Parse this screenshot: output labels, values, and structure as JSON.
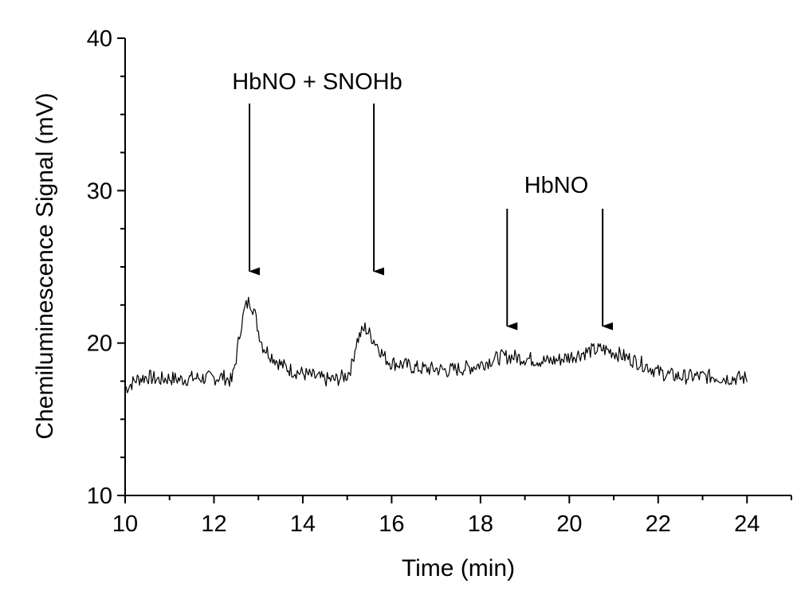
{
  "chart_data": {
    "type": "line",
    "title": "",
    "xlabel": "Time (min)",
    "ylabel": "Chemiluminescence Signal (mV)",
    "xlim": [
      10,
      25
    ],
    "ylim": [
      10,
      40
    ],
    "xticks": [
      "10",
      "12",
      "14",
      "16",
      "18",
      "20",
      "22",
      "24"
    ],
    "yticks": [
      "10",
      "20",
      "30",
      "40"
    ],
    "grid": false,
    "legend": "none",
    "line_color": "#000000",
    "series": [
      {
        "x": [
          10.0,
          10.25,
          10.5,
          10.75,
          11.0,
          11.25,
          11.5,
          11.75,
          12.0,
          12.2,
          12.4,
          12.5,
          12.6,
          12.7,
          12.8,
          12.9,
          13.0,
          13.1,
          13.25,
          13.5,
          13.75,
          14.0,
          14.25,
          14.5,
          14.75,
          15.0,
          15.1,
          15.2,
          15.3,
          15.4,
          15.5,
          15.6,
          15.7,
          15.8,
          15.9,
          16.0,
          16.25,
          16.5,
          16.75,
          17.0,
          17.25,
          17.5,
          17.75,
          18.0,
          18.25,
          18.5,
          18.75,
          19.0,
          19.25,
          19.5,
          19.75,
          20.0,
          20.25,
          20.5,
          20.75,
          21.0,
          21.25,
          21.5,
          21.75,
          22.0,
          22.25,
          22.5,
          22.75,
          23.0,
          23.25,
          23.5,
          23.75,
          24.0
        ],
        "values": [
          17.0,
          17.6,
          17.8,
          17.6,
          17.7,
          17.6,
          17.7,
          17.7,
          17.7,
          17.8,
          17.5,
          19.0,
          21.0,
          22.3,
          22.8,
          22.2,
          20.8,
          19.8,
          19.3,
          18.6,
          18.2,
          18.0,
          17.8,
          17.6,
          17.6,
          17.9,
          18.5,
          20.0,
          20.6,
          21.0,
          20.6,
          20.2,
          19.8,
          19.2,
          18.9,
          18.7,
          18.6,
          18.4,
          18.3,
          18.3,
          18.2,
          18.3,
          18.4,
          18.6,
          18.9,
          19.1,
          19.1,
          19.0,
          18.9,
          18.8,
          18.9,
          19.1,
          19.3,
          19.5,
          19.6,
          19.4,
          19.1,
          18.8,
          18.5,
          18.1,
          17.9,
          17.8,
          17.8,
          17.8,
          17.8,
          17.7,
          17.7,
          17.7
        ]
      }
    ],
    "annotations": [
      {
        "text": "HbNO + SNOHb"
      },
      {
        "text": "HbNO"
      }
    ],
    "arrows": [
      {
        "x": 12.8,
        "y_tip": 24.6
      },
      {
        "x": 15.6,
        "y_tip": 24.6
      },
      {
        "x": 18.6,
        "y_tip": 21.0
      },
      {
        "x": 20.75,
        "y_tip": 21.0
      }
    ]
  }
}
